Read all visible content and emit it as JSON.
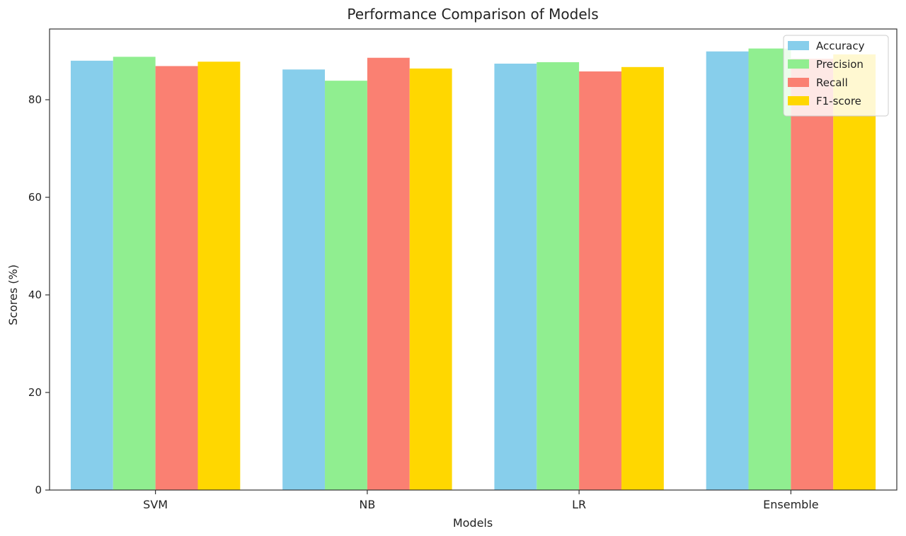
{
  "chart_data": {
    "type": "bar",
    "title": "Performance Comparison of Models",
    "xlabel": "Models",
    "ylabel": "Scores (%)",
    "categories": [
      "SVM",
      "NB",
      "LR",
      "Ensemble"
    ],
    "ylim": [
      0,
      94.5
    ],
    "yticks": [
      0,
      20,
      40,
      60,
      80
    ],
    "grid": false,
    "legend_position": "top-right",
    "series": [
      {
        "name": "Accuracy",
        "color": "#87CEEB",
        "values": [
          88.0,
          86.2,
          87.4,
          89.9
        ]
      },
      {
        "name": "Precision",
        "color": "#90EE90",
        "values": [
          88.8,
          83.9,
          87.7,
          90.5
        ]
      },
      {
        "name": "Recall",
        "color": "#FA8072",
        "values": [
          86.9,
          88.6,
          85.8,
          88.4
        ]
      },
      {
        "name": "F1-score",
        "color": "#FFD700",
        "values": [
          87.8,
          86.4,
          86.7,
          89.3
        ]
      }
    ]
  }
}
